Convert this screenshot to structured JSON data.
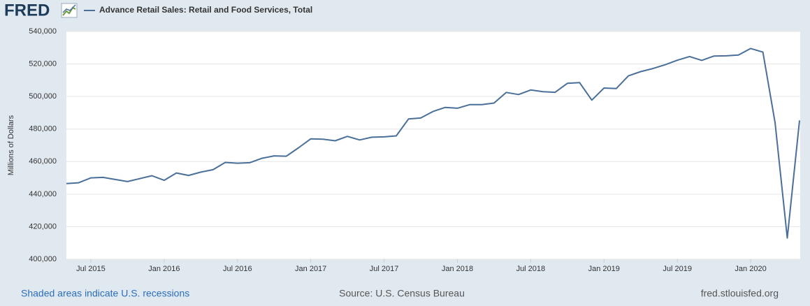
{
  "logo": "FRED",
  "chart_data": {
    "type": "line",
    "title": "Advance Retail Sales: Retail and Food Services, Total",
    "ylabel": "Millions of Dollars",
    "x": [
      "2015-05",
      "2015-06",
      "2015-07",
      "2015-08",
      "2015-09",
      "2015-10",
      "2015-11",
      "2015-12",
      "2016-01",
      "2016-02",
      "2016-03",
      "2016-04",
      "2016-05",
      "2016-06",
      "2016-07",
      "2016-08",
      "2016-09",
      "2016-10",
      "2016-11",
      "2016-12",
      "2017-01",
      "2017-02",
      "2017-03",
      "2017-04",
      "2017-05",
      "2017-06",
      "2017-07",
      "2017-08",
      "2017-09",
      "2017-10",
      "2017-11",
      "2017-12",
      "2018-01",
      "2018-02",
      "2018-03",
      "2018-04",
      "2018-05",
      "2018-06",
      "2018-07",
      "2018-08",
      "2018-09",
      "2018-10",
      "2018-11",
      "2018-12",
      "2019-01",
      "2019-02",
      "2019-03",
      "2019-04",
      "2019-05",
      "2019-06",
      "2019-07",
      "2019-08",
      "2019-09",
      "2019-10",
      "2019-11",
      "2019-12",
      "2020-01",
      "2020-02",
      "2020-03",
      "2020-04",
      "2020-05"
    ],
    "series": [
      {
        "name": "Advance Retail Sales: Retail and Food Services, Total",
        "color": "#4a6f98",
        "values": [
          446500,
          447000,
          450000,
          450300,
          449000,
          447700,
          449500,
          451300,
          448500,
          453000,
          451500,
          453500,
          455000,
          459500,
          459000,
          459300,
          462000,
          463500,
          463300,
          468500,
          474000,
          473800,
          472800,
          475500,
          473300,
          475000,
          475200,
          475800,
          486200,
          486800,
          490800,
          493300,
          492800,
          495000,
          495000,
          496000,
          502500,
          501200,
          504000,
          503000,
          502600,
          508100,
          508500,
          497800,
          505200,
          504900,
          512700,
          515300,
          517200,
          519500,
          522300,
          524600,
          522200,
          524900,
          525000,
          525500,
          529500,
          527300,
          484000,
          413000,
          485300
        ]
      }
    ],
    "ylim": [
      400000,
      540000
    ],
    "yticks": [
      {
        "value": 400000,
        "label": "400,000"
      },
      {
        "value": 420000,
        "label": "420,000"
      },
      {
        "value": 440000,
        "label": "440,000"
      },
      {
        "value": 460000,
        "label": "460,000"
      },
      {
        "value": 480000,
        "label": "480,000"
      },
      {
        "value": 500000,
        "label": "500,000"
      },
      {
        "value": 520000,
        "label": "520,000"
      },
      {
        "value": 540000,
        "label": "540,000"
      }
    ],
    "xticks": [
      {
        "value": "2015-07",
        "label": "Jul 2015"
      },
      {
        "value": "2016-01",
        "label": "Jan 2016"
      },
      {
        "value": "2016-07",
        "label": "Jul 2016"
      },
      {
        "value": "2017-01",
        "label": "Jan 2017"
      },
      {
        "value": "2017-07",
        "label": "Jul 2017"
      },
      {
        "value": "2018-01",
        "label": "Jan 2018"
      },
      {
        "value": "2018-07",
        "label": "Jul 2018"
      },
      {
        "value": "2019-01",
        "label": "Jan 2019"
      },
      {
        "value": "2019-07",
        "label": "Jul 2019"
      },
      {
        "value": "2020-01",
        "label": "Jan 2020"
      }
    ],
    "grid": true
  },
  "footer": {
    "left": "Shaded areas indicate U.S. recessions",
    "center": "Source: U.S. Census Bureau",
    "right": "fred.stlouisfed.org"
  }
}
